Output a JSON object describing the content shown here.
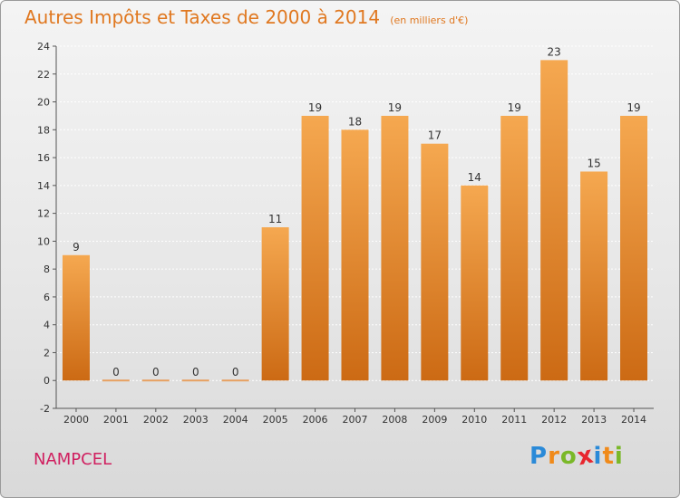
{
  "header": {
    "title": "Autres Impôts et Taxes de 2000 à 2014",
    "subtitle": "(en milliers d'€)"
  },
  "footer": {
    "location": "NAMPCEL",
    "brand_letters": [
      "P",
      "r",
      "o",
      "x",
      "i",
      "t",
      "i"
    ],
    "brand_colors": [
      "#2a8ad8",
      "#f08a1a",
      "#7ab828",
      "#e8262e",
      "#2a8ad8",
      "#f08a1a",
      "#7ab828"
    ]
  },
  "colors": {
    "bar_light": "#f5a850",
    "bar_dark": "#cc6a14",
    "zero_bar": "#e8a060",
    "axis": "#555555",
    "grid": "#ffffff"
  },
  "chart_data": {
    "type": "bar",
    "title": "Autres Impôts et Taxes de 2000 à 2014",
    "subtitle": "(en milliers d'€)",
    "xlabel": "",
    "ylabel": "",
    "categories": [
      "2000",
      "2001",
      "2002",
      "2003",
      "2004",
      "2005",
      "2006",
      "2007",
      "2008",
      "2009",
      "2010",
      "2011",
      "2012",
      "2013",
      "2014"
    ],
    "values": [
      9,
      0,
      0,
      0,
      0,
      11,
      19,
      18,
      19,
      17,
      14,
      19,
      23,
      15,
      19
    ],
    "data_labels": [
      "9",
      "0",
      "0",
      "0",
      "0",
      "11",
      "19",
      "18",
      "19",
      "17",
      "14",
      "19",
      "23",
      "15",
      "19"
    ],
    "ylim": [
      -2,
      24
    ],
    "yticks": [
      -2,
      0,
      2,
      4,
      6,
      8,
      10,
      12,
      14,
      16,
      18,
      20,
      22,
      24
    ],
    "grid": true
  }
}
